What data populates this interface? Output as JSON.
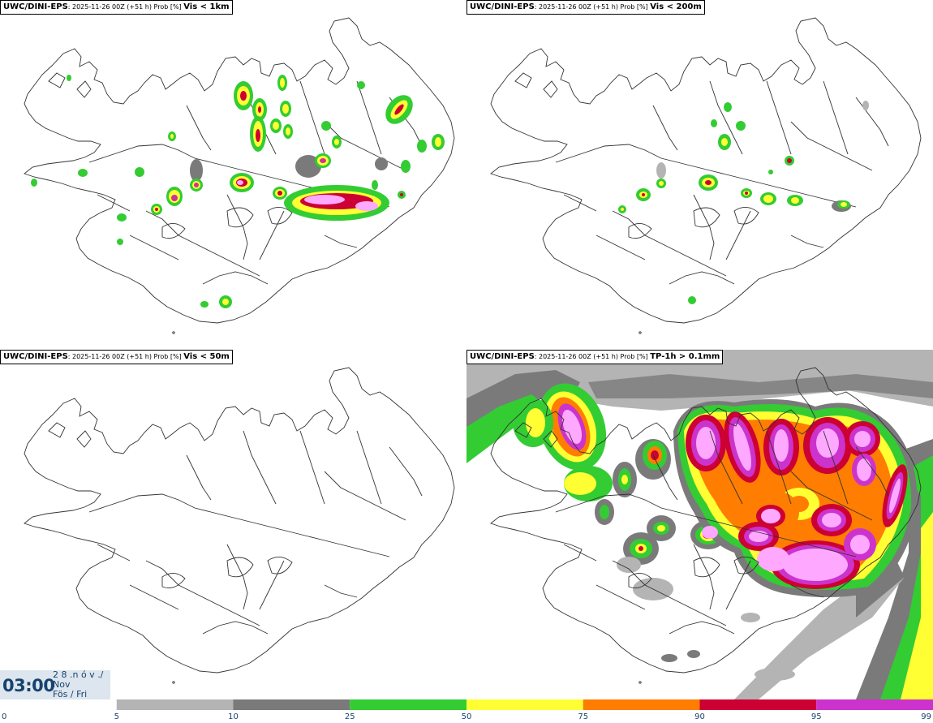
{
  "panels": [
    {
      "source": "UWC/DINI-EPS",
      "meta": ": 2025-11-26 00Z (+51 h) Prob [%] ",
      "variable": "Vis < 1km"
    },
    {
      "source": "UWC/DINI-EPS",
      "meta": ": 2025-11-26 00Z (+51 h) Prob [%] ",
      "variable": "Vis < 200m"
    },
    {
      "source": "UWC/DINI-EPS",
      "meta": ": 2025-11-26 00Z (+51 h) Prob [%] ",
      "variable": "Vis < 50m"
    },
    {
      "source": "UWC/DINI-EPS",
      "meta": ": 2025-11-26 00Z (+51 h) Prob [%] ",
      "variable": "TP-1h > 0.1mm"
    }
  ],
  "valid_time": {
    "time": "03:00",
    "date_line1": "2 8 .n ó v ./",
    "date_line2": "Nov",
    "date_line3": "Fös / Fri"
  },
  "legend": {
    "ticks": [
      "0",
      "5",
      "10",
      "25",
      "50",
      "75",
      "90",
      "95",
      "99"
    ],
    "colors": [
      "#ffffff",
      "#b4b4b4",
      "#7a7a7a",
      "#33cc33",
      "#ffff33",
      "#ff7d00",
      "#cc0033",
      "#cc33cc",
      "#ffa8ff"
    ]
  }
}
